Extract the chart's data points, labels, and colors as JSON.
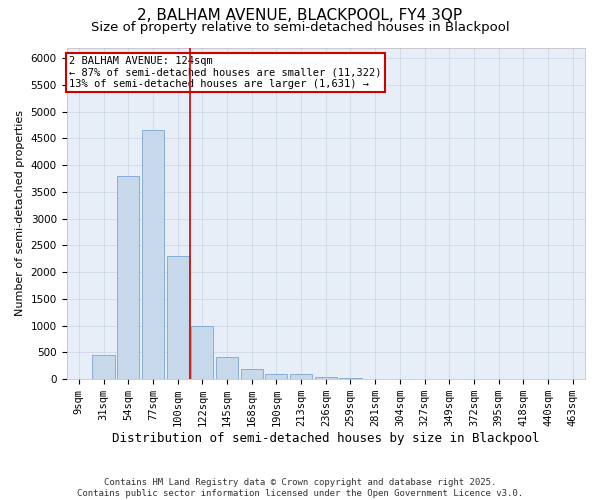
{
  "title1": "2, BALHAM AVENUE, BLACKPOOL, FY4 3QP",
  "title2": "Size of property relative to semi-detached houses in Blackpool",
  "xlabel": "Distribution of semi-detached houses by size in Blackpool",
  "ylabel": "Number of semi-detached properties",
  "categories": [
    "9sqm",
    "31sqm",
    "54sqm",
    "77sqm",
    "100sqm",
    "122sqm",
    "145sqm",
    "168sqm",
    "190sqm",
    "213sqm",
    "236sqm",
    "259sqm",
    "281sqm",
    "304sqm",
    "327sqm",
    "349sqm",
    "372sqm",
    "395sqm",
    "418sqm",
    "440sqm",
    "463sqm"
  ],
  "values": [
    5,
    450,
    3800,
    4650,
    2300,
    1000,
    420,
    200,
    100,
    100,
    40,
    20,
    8,
    5,
    3,
    2,
    1,
    1,
    1,
    1,
    1
  ],
  "bar_color": "#c8d8eb",
  "bar_edge_color": "#6699cc",
  "vline_color": "#cc0000",
  "vline_x": 4.5,
  "annotation_text": "2 BALHAM AVENUE: 124sqm\n← 87% of semi-detached houses are smaller (11,322)\n13% of semi-detached houses are larger (1,631) →",
  "annotation_box_color": "#cc0000",
  "ylim": [
    0,
    6200
  ],
  "yticks": [
    0,
    500,
    1000,
    1500,
    2000,
    2500,
    3000,
    3500,
    4000,
    4500,
    5000,
    5500,
    6000
  ],
  "grid_color": "#c8d4e4",
  "bg_color": "#e8eef8",
  "footnote": "Contains HM Land Registry data © Crown copyright and database right 2025.\nContains public sector information licensed under the Open Government Licence v3.0.",
  "title1_fontsize": 11,
  "title2_fontsize": 9.5,
  "xlabel_fontsize": 9,
  "ylabel_fontsize": 8,
  "tick_fontsize": 7.5,
  "footnote_fontsize": 6.5
}
